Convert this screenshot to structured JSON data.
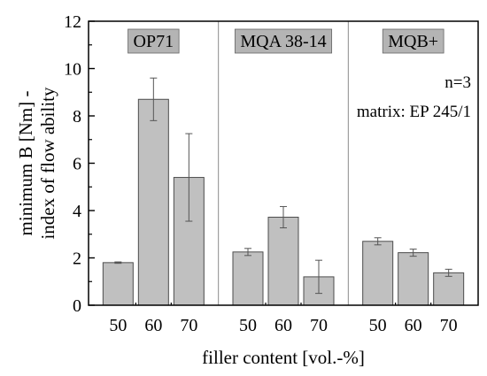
{
  "chart_data": {
    "type": "bar",
    "xlabel": "filler content [vol.-%]",
    "ylabel_lines": [
      "minimum B [Nm] -",
      "index of flow ability"
    ],
    "ylim": [
      0,
      12
    ],
    "yticks": [
      0,
      2,
      4,
      6,
      8,
      10,
      12
    ],
    "grid": false,
    "annotations": [
      "n=3",
      "matrix: EP 245/1"
    ],
    "colors": {
      "bar": "#c0c0c0",
      "bar_stroke": "#4d4d4d",
      "label_box": "#b4b4b4",
      "separator": "#8c8c8c"
    },
    "groups": [
      {
        "name": "OP71",
        "categories": [
          "50",
          "60",
          "70"
        ],
        "values": [
          1.8,
          8.7,
          5.4
        ],
        "errors": [
          0.03,
          0.9,
          1.85
        ]
      },
      {
        "name": "MQA 38-14",
        "categories": [
          "50",
          "60",
          "70"
        ],
        "values": [
          2.25,
          3.72,
          1.2
        ],
        "errors": [
          0.15,
          0.45,
          0.7
        ]
      },
      {
        "name": "MQB+",
        "categories": [
          "50",
          "60",
          "70"
        ],
        "values": [
          2.7,
          2.22,
          1.37
        ],
        "errors": [
          0.15,
          0.15,
          0.15
        ]
      }
    ]
  }
}
